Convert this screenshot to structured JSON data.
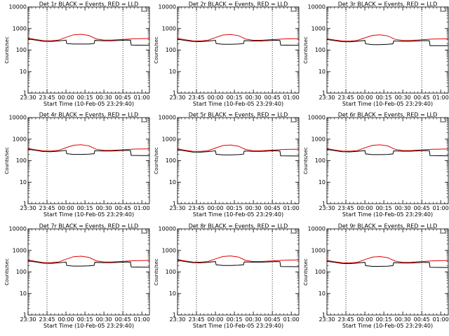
{
  "figure": {
    "colors": {
      "events": "#000000",
      "lld": "#e00000",
      "background": "#ffffff"
    }
  },
  "chart_data": [
    {
      "type": "line",
      "title": "Det 1r BLACK = Events, RED = LLD",
      "xlabel": "Start Time (10-Feb-05 23:29:40)",
      "ylabel": "Counts/sec",
      "xlim": [
        23.5,
        25.1
      ],
      "ylim": [
        1,
        10000
      ],
      "yscale": "log",
      "x_ticks": [
        "23:30",
        "23:45",
        "00:00",
        "00:15",
        "00:30",
        "00:45",
        "01:00"
      ],
      "y_ticks": [
        "1",
        "10",
        "100",
        "1000",
        "10000"
      ],
      "vlines": [
        23.75,
        24.75
      ],
      "series": [
        {
          "name": "Events",
          "color": "#000000",
          "x": [
            23.5,
            23.6,
            23.7,
            23.8,
            23.9,
            24.0,
            24.01,
            24.1,
            24.2,
            24.3,
            24.37,
            24.38,
            24.5,
            24.6,
            24.7,
            24.8,
            24.85,
            24.86,
            25.1
          ],
          "y": [
            330,
            290,
            255,
            250,
            265,
            290,
            200,
            190,
            190,
            190,
            200,
            280,
            270,
            270,
            280,
            290,
            285,
            170,
            165
          ]
        },
        {
          "name": "LLD",
          "color": "#e00000",
          "x": [
            23.5,
            23.6,
            23.7,
            23.8,
            23.9,
            24.0,
            24.1,
            24.2,
            24.3,
            24.4,
            24.5,
            24.6,
            24.7,
            24.8,
            24.9,
            25.1
          ],
          "y": [
            360,
            310,
            275,
            270,
            290,
            390,
            510,
            540,
            480,
            330,
            290,
            290,
            305,
            320,
            335,
            345
          ]
        }
      ]
    },
    {
      "type": "line",
      "title": "Det 2r BLACK = Events, RED = LLD",
      "xlabel": "Start Time (10-Feb-05 23:29:40)",
      "ylabel": "Counts/sec",
      "xlim": [
        23.5,
        25.1
      ],
      "ylim": [
        1,
        10000
      ],
      "yscale": "log",
      "x_ticks": [
        "23:30",
        "23:45",
        "00:00",
        "00:15",
        "00:30",
        "00:45",
        "01:00"
      ],
      "y_ticks": [
        "1",
        "10",
        "100",
        "1000",
        "10000"
      ],
      "vlines": [
        23.75,
        24.75
      ],
      "series": [
        {
          "name": "Events",
          "color": "#000000",
          "x": [
            23.5,
            23.6,
            23.7,
            23.8,
            23.9,
            24.0,
            24.01,
            24.1,
            24.2,
            24.3,
            24.37,
            24.38,
            24.5,
            24.6,
            24.7,
            24.8,
            24.85,
            24.86,
            25.1
          ],
          "y": [
            320,
            280,
            250,
            245,
            260,
            285,
            200,
            185,
            185,
            190,
            200,
            275,
            265,
            265,
            275,
            285,
            280,
            170,
            165
          ]
        },
        {
          "name": "LLD",
          "color": "#e00000",
          "x": [
            23.5,
            23.6,
            23.7,
            23.8,
            23.9,
            24.0,
            24.1,
            24.2,
            24.3,
            24.4,
            24.5,
            24.6,
            24.7,
            24.8,
            24.9,
            25.1
          ],
          "y": [
            350,
            300,
            270,
            265,
            285,
            380,
            500,
            530,
            470,
            325,
            285,
            285,
            300,
            315,
            330,
            340
          ]
        }
      ]
    },
    {
      "type": "line",
      "title": "Det 3r BLACK = Events, RED = LLD",
      "xlabel": "Start Time (10-Feb-05 23:29:40)",
      "ylabel": "Counts/sec",
      "xlim": [
        23.5,
        25.1
      ],
      "ylim": [
        1,
        10000
      ],
      "yscale": "log",
      "x_ticks": [
        "23:30",
        "23:45",
        "00:00",
        "00:15",
        "00:30",
        "00:45",
        "01:00"
      ],
      "y_ticks": [
        "1",
        "10",
        "100",
        "1000",
        "10000"
      ],
      "vlines": [
        23.75,
        24.75
      ],
      "series": [
        {
          "name": "Events",
          "color": "#000000",
          "x": [
            23.5,
            23.6,
            23.7,
            23.8,
            23.9,
            24.0,
            24.01,
            24.1,
            24.2,
            24.3,
            24.37,
            24.38,
            24.5,
            24.6,
            24.7,
            24.8,
            24.85,
            24.86,
            25.1
          ],
          "y": [
            310,
            275,
            245,
            240,
            255,
            280,
            195,
            180,
            180,
            185,
            195,
            265,
            255,
            255,
            265,
            275,
            270,
            160,
            160
          ]
        },
        {
          "name": "LLD",
          "color": "#e00000",
          "x": [
            23.5,
            23.6,
            23.7,
            23.8,
            23.9,
            24.0,
            24.1,
            24.2,
            24.3,
            24.4,
            24.5,
            24.6,
            24.7,
            24.8,
            24.9,
            25.1
          ],
          "y": [
            340,
            295,
            265,
            260,
            280,
            370,
            480,
            510,
            455,
            315,
            280,
            280,
            295,
            310,
            325,
            335
          ]
        }
      ]
    },
    {
      "type": "line",
      "title": "Det 4r BLACK = Events, RED = LLD",
      "xlabel": "Start Time (10-Feb-05 23:29:40)",
      "ylabel": "Counts/sec",
      "xlim": [
        23.5,
        25.1
      ],
      "ylim": [
        1,
        10000
      ],
      "yscale": "log",
      "x_ticks": [
        "23:30",
        "23:45",
        "00:00",
        "00:15",
        "00:30",
        "00:45",
        "01:00"
      ],
      "y_ticks": [
        "1",
        "10",
        "100",
        "1000",
        "10000"
      ],
      "vlines": [
        23.75,
        24.75
      ],
      "series": [
        {
          "name": "Events",
          "color": "#000000",
          "x": [
            23.5,
            23.6,
            23.7,
            23.8,
            23.9,
            24.0,
            24.01,
            24.1,
            24.2,
            24.3,
            24.37,
            24.38,
            24.5,
            24.6,
            24.7,
            24.8,
            24.85,
            24.86,
            25.1
          ],
          "y": [
            340,
            300,
            265,
            260,
            275,
            300,
            210,
            195,
            195,
            200,
            210,
            290,
            280,
            280,
            290,
            300,
            295,
            175,
            170
          ]
        },
        {
          "name": "LLD",
          "color": "#e00000",
          "x": [
            23.5,
            23.6,
            23.7,
            23.8,
            23.9,
            24.0,
            24.1,
            24.2,
            24.3,
            24.4,
            24.5,
            24.6,
            24.7,
            24.8,
            24.9,
            25.1
          ],
          "y": [
            370,
            320,
            285,
            280,
            300,
            400,
            520,
            550,
            490,
            340,
            300,
            300,
            315,
            330,
            345,
            355
          ]
        }
      ]
    },
    {
      "type": "line",
      "title": "Det 5r BLACK = Events, RED = LLD",
      "xlabel": "Start Time (10-Feb-05 23:29:40)",
      "ylabel": "Counts/sec",
      "xlim": [
        23.5,
        25.1
      ],
      "ylim": [
        1,
        10000
      ],
      "yscale": "log",
      "x_ticks": [
        "23:30",
        "23:45",
        "00:00",
        "00:15",
        "00:30",
        "00:45",
        "01:00"
      ],
      "y_ticks": [
        "1",
        "10",
        "100",
        "1000",
        "10000"
      ],
      "vlines": [
        23.75,
        24.75
      ],
      "series": [
        {
          "name": "Events",
          "color": "#000000",
          "x": [
            23.5,
            23.6,
            23.7,
            23.8,
            23.9,
            24.0,
            24.01,
            24.1,
            24.2,
            24.3,
            24.37,
            24.38,
            24.5,
            24.6,
            24.7,
            24.8,
            24.85,
            24.86,
            25.1
          ],
          "y": [
            325,
            285,
            252,
            248,
            262,
            288,
            198,
            186,
            186,
            190,
            200,
            278,
            268,
            268,
            278,
            288,
            282,
            168,
            164
          ]
        },
        {
          "name": "LLD",
          "color": "#e00000",
          "x": [
            23.5,
            23.6,
            23.7,
            23.8,
            23.9,
            24.0,
            24.1,
            24.2,
            24.3,
            24.4,
            24.5,
            24.6,
            24.7,
            24.8,
            24.9,
            25.1
          ],
          "y": [
            355,
            305,
            272,
            268,
            288,
            385,
            505,
            535,
            475,
            328,
            288,
            288,
            302,
            318,
            332,
            342
          ]
        }
      ]
    },
    {
      "type": "line",
      "title": "Det 6r BLACK = Events, RED = LLD",
      "xlabel": "Start Time (10-Feb-05 23:29:40)",
      "ylabel": "Counts/sec",
      "xlim": [
        23.5,
        25.1
      ],
      "ylim": [
        1,
        10000
      ],
      "yscale": "log",
      "x_ticks": [
        "23:30",
        "23:45",
        "00:00",
        "00:15",
        "00:30",
        "00:45",
        "01:00"
      ],
      "y_ticks": [
        "1",
        "10",
        "100",
        "1000",
        "10000"
      ],
      "vlines": [
        23.75,
        24.75
      ],
      "series": [
        {
          "name": "Events",
          "color": "#000000",
          "x": [
            23.5,
            23.6,
            23.7,
            23.8,
            23.9,
            24.0,
            24.01,
            24.1,
            24.2,
            24.3,
            24.37,
            24.38,
            24.5,
            24.6,
            24.7,
            24.8,
            24.85,
            24.86,
            25.1
          ],
          "y": [
            335,
            295,
            260,
            255,
            270,
            295,
            205,
            190,
            190,
            195,
            205,
            285,
            275,
            275,
            285,
            295,
            290,
            172,
            168
          ]
        },
        {
          "name": "LLD",
          "color": "#e00000",
          "x": [
            23.5,
            23.6,
            23.7,
            23.8,
            23.9,
            24.0,
            24.1,
            24.2,
            24.3,
            24.4,
            24.5,
            24.6,
            24.7,
            24.8,
            24.9,
            25.1
          ],
          "y": [
            365,
            315,
            280,
            275,
            295,
            395,
            515,
            545,
            485,
            335,
            295,
            295,
            310,
            325,
            340,
            350
          ]
        }
      ]
    },
    {
      "type": "line",
      "title": "Det 7r BLACK = Events, RED = LLD",
      "xlabel": "Start Time (10-Feb-05 23:29:40)",
      "ylabel": "Counts/sec",
      "xlim": [
        23.5,
        25.1
      ],
      "ylim": [
        1,
        10000
      ],
      "yscale": "log",
      "x_ticks": [
        "23:30",
        "23:45",
        "00:00",
        "00:15",
        "00:30",
        "00:45",
        "01:00"
      ],
      "y_ticks": [
        "1",
        "10",
        "100",
        "1000",
        "10000"
      ],
      "vlines": [
        23.75,
        24.75
      ],
      "series": [
        {
          "name": "Events",
          "color": "#000000",
          "x": [
            23.5,
            23.6,
            23.7,
            23.8,
            23.9,
            24.0,
            24.01,
            24.1,
            24.2,
            24.3,
            24.37,
            24.38,
            24.5,
            24.6,
            24.7,
            24.8,
            24.85,
            24.86,
            25.1
          ],
          "y": [
            330,
            290,
            255,
            250,
            265,
            290,
            200,
            188,
            188,
            192,
            202,
            280,
            270,
            270,
            280,
            290,
            285,
            170,
            166
          ]
        },
        {
          "name": "LLD",
          "color": "#e00000",
          "x": [
            23.5,
            23.6,
            23.7,
            23.8,
            23.9,
            24.0,
            24.1,
            24.2,
            24.3,
            24.4,
            24.5,
            24.6,
            24.7,
            24.8,
            24.9,
            25.1
          ],
          "y": [
            360,
            310,
            275,
            270,
            290,
            390,
            510,
            540,
            480,
            330,
            290,
            290,
            305,
            320,
            335,
            345
          ]
        }
      ]
    },
    {
      "type": "line",
      "title": "Det 8r BLACK = Events, RED = LLD",
      "xlabel": "Start Time (10-Feb-05 23:29:40)",
      "ylabel": "Counts/sec",
      "xlim": [
        23.5,
        25.1
      ],
      "ylim": [
        1,
        10000
      ],
      "yscale": "log",
      "x_ticks": [
        "23:30",
        "23:45",
        "00:00",
        "00:15",
        "00:30",
        "00:45",
        "01:00"
      ],
      "y_ticks": [
        "1",
        "10",
        "100",
        "1000",
        "10000"
      ],
      "vlines": [
        23.75,
        24.75
      ],
      "series": [
        {
          "name": "Events",
          "color": "#000000",
          "x": [
            23.5,
            23.6,
            23.7,
            23.8,
            23.9,
            24.0,
            24.01,
            24.1,
            24.2,
            24.3,
            24.37,
            24.38,
            24.5,
            24.6,
            24.7,
            24.8,
            24.85,
            24.86,
            25.1
          ],
          "y": [
            345,
            305,
            270,
            265,
            280,
            305,
            215,
            200,
            200,
            205,
            215,
            295,
            285,
            285,
            295,
            305,
            300,
            180,
            175
          ]
        },
        {
          "name": "LLD",
          "color": "#e00000",
          "x": [
            23.5,
            23.6,
            23.7,
            23.8,
            23.9,
            24.0,
            24.1,
            24.2,
            24.3,
            24.4,
            24.5,
            24.6,
            24.7,
            24.8,
            24.9,
            25.1
          ],
          "y": [
            375,
            325,
            290,
            285,
            305,
            405,
            525,
            555,
            495,
            345,
            305,
            305,
            320,
            335,
            350,
            360
          ]
        }
      ]
    },
    {
      "type": "line",
      "title": "Det 9r BLACK = Events, RED = LLD",
      "xlabel": "Start Time (10-Feb-05 23:29:40)",
      "ylabel": "Counts/sec",
      "xlim": [
        23.5,
        25.1
      ],
      "ylim": [
        1,
        10000
      ],
      "yscale": "log",
      "x_ticks": [
        "23:30",
        "23:45",
        "00:00",
        "00:15",
        "00:30",
        "00:45",
        "01:00"
      ],
      "y_ticks": [
        "1",
        "10",
        "100",
        "1000",
        "10000"
      ],
      "vlines": [
        23.75,
        24.75
      ],
      "series": [
        {
          "name": "Events",
          "color": "#000000",
          "x": [
            23.5,
            23.6,
            23.7,
            23.8,
            23.9,
            24.0,
            24.01,
            24.1,
            24.2,
            24.3,
            24.37,
            24.38,
            24.5,
            24.6,
            24.7,
            24.8,
            24.85,
            24.86,
            25.1
          ],
          "y": [
            315,
            278,
            248,
            244,
            258,
            282,
            196,
            182,
            182,
            186,
            196,
            268,
            258,
            258,
            268,
            278,
            274,
            164,
            160
          ]
        },
        {
          "name": "LLD",
          "color": "#e00000",
          "x": [
            23.5,
            23.6,
            23.7,
            23.8,
            23.9,
            24.0,
            24.1,
            24.2,
            24.3,
            24.4,
            24.5,
            24.6,
            24.7,
            24.8,
            24.9,
            25.1
          ],
          "y": [
            345,
            298,
            268,
            262,
            282,
            375,
            490,
            520,
            462,
            320,
            282,
            282,
            298,
            312,
            328,
            338
          ]
        }
      ]
    }
  ]
}
